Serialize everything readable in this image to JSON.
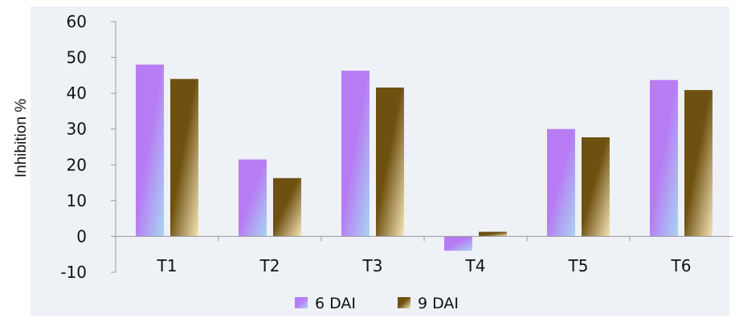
{
  "chart_data": {
    "type": "bar",
    "title": "",
    "xlabel": "",
    "ylabel": "Inhibition %",
    "categories": [
      "T1",
      "T2",
      "T3",
      "T4",
      "T5",
      "T6"
    ],
    "series": [
      {
        "name": "6 DAI",
        "values": [
          48,
          21.5,
          46.3,
          -4,
          30,
          43.7
        ],
        "color_start": "#b77bf3",
        "color_end": "#a9d4f3"
      },
      {
        "name": "9 DAI",
        "values": [
          44,
          16.3,
          41.6,
          1.3,
          27.7,
          40.9
        ],
        "color_start": "#6e5010",
        "color_end": "#f5e4b8"
      }
    ],
    "ylim": [
      -10,
      60
    ],
    "yticks": [
      -10,
      0,
      10,
      20,
      30,
      40,
      50,
      60
    ],
    "grid": false,
    "legend_position": "bottom"
  }
}
